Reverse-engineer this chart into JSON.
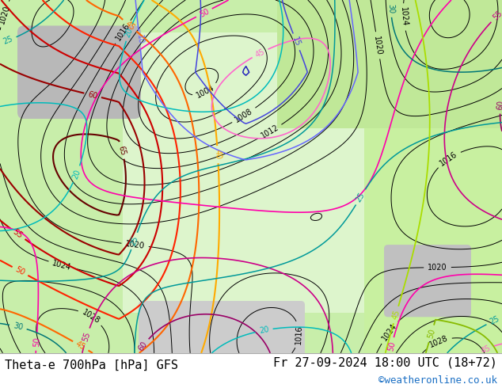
{
  "title_left": "Theta-e 700hPa [hPa] GFS",
  "title_right": "Fr 27-09-2024 18:00 UTC (18+72)",
  "copyright": "©weatheronline.co.uk",
  "bg_color": "#ffffff",
  "text_color": "#000000",
  "copyright_color": "#1a6fc4",
  "title_fontsize": 11,
  "copyright_fontsize": 9,
  "figsize": [
    6.34,
    4.9
  ],
  "dpi": 100
}
